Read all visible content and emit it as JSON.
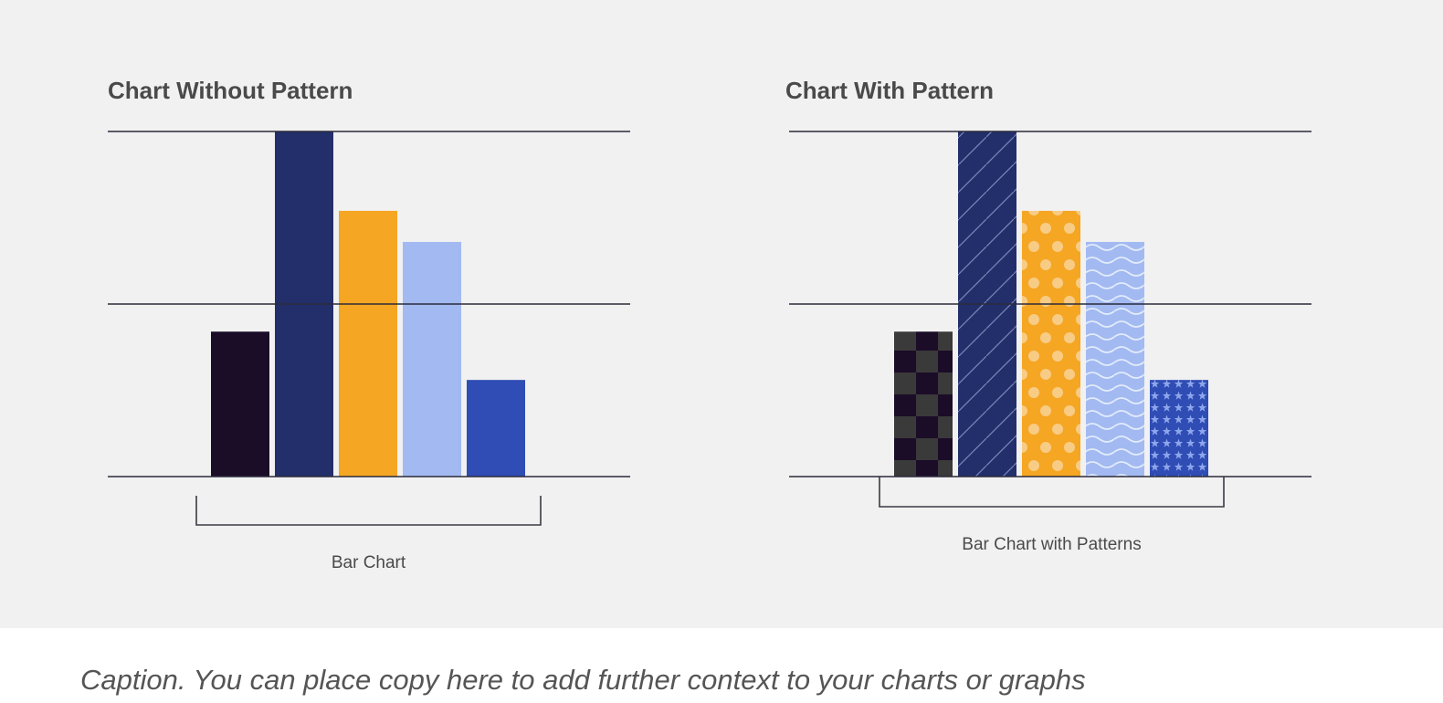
{
  "colors": {
    "background": "#f1f1f1",
    "page": "#ffffff",
    "gridline": "#2b2b3a",
    "text": "#4a4a4a",
    "caption": "#555555"
  },
  "chart_data": [
    {
      "type": "bar",
      "title": "Chart Without Pattern",
      "categories": [
        "",
        "",
        "",
        "",
        ""
      ],
      "values": [
        42,
        100,
        77,
        68,
        28
      ],
      "ylim": [
        0,
        100
      ],
      "grid": true,
      "gridlines": [
        0,
        50,
        100
      ],
      "colors": [
        "#1b0c28",
        "#232f6a",
        "#f5a623",
        "#a2baf1",
        "#2f4db5"
      ],
      "patterns": [
        "none",
        "none",
        "none",
        "none",
        "none"
      ],
      "bracket_label": "Bar Chart"
    },
    {
      "type": "bar",
      "title": "Chart With Pattern",
      "categories": [
        "",
        "",
        "",
        "",
        ""
      ],
      "values": [
        42,
        100,
        77,
        68,
        28
      ],
      "ylim": [
        0,
        100
      ],
      "grid": true,
      "gridlines": [
        0,
        50,
        100
      ],
      "colors": [
        "#1b0c28",
        "#232f6a",
        "#f5a623",
        "#a2baf1",
        "#2f4db5"
      ],
      "patterns": [
        "checker",
        "diagonal",
        "dots",
        "waves",
        "stars"
      ],
      "bracket_label": "Bar Chart with Patterns"
    }
  ],
  "caption": "Caption. You can place copy here to add further context to your charts or graphs"
}
